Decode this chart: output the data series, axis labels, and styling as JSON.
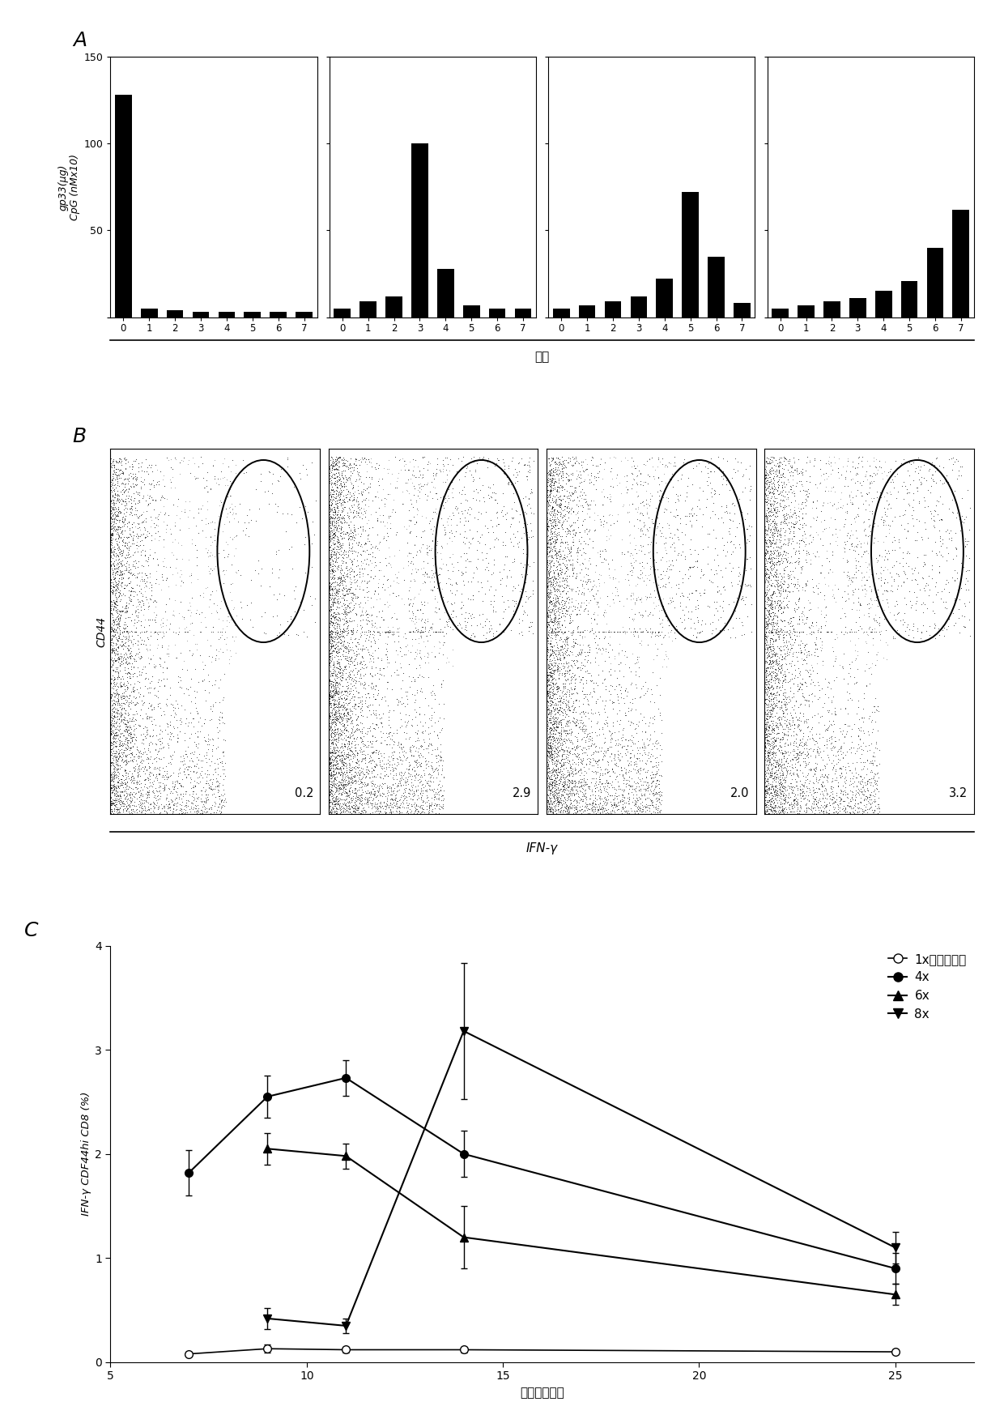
{
  "panel_A": {
    "title": "A",
    "ylabel1": "gp33(μg)",
    "ylabel2": "CpG (nMx10)",
    "xlabel_shared": "天数",
    "subpanels": [
      {
        "days": [
          0,
          1,
          2,
          3,
          4,
          5,
          6,
          7
        ],
        "values": [
          128,
          5,
          4,
          3,
          3,
          3,
          3,
          3
        ]
      },
      {
        "days": [
          0,
          1,
          2,
          3,
          4,
          5,
          6,
          7
        ],
        "values": [
          5,
          9,
          12,
          100,
          28,
          7,
          5,
          5
        ]
      },
      {
        "days": [
          0,
          1,
          2,
          3,
          4,
          5,
          6,
          7
        ],
        "values": [
          5,
          7,
          9,
          12,
          22,
          72,
          35,
          8
        ]
      },
      {
        "days": [
          0,
          1,
          2,
          3,
          4,
          5,
          6,
          7
        ],
        "values": [
          5,
          7,
          9,
          11,
          15,
          21,
          40,
          62
        ]
      }
    ],
    "ylim": [
      0,
      150
    ],
    "yticks": [
      0,
      50,
      100,
      150
    ],
    "yticklabels": [
      "",
      "50",
      "100",
      "150"
    ]
  },
  "panel_B": {
    "title": "B",
    "ylabel": "CD44",
    "xlabel": "IFN-γ",
    "scatter_labels": [
      "0.2",
      "2.9",
      "2.0",
      "3.2"
    ],
    "n_main": [
      2200,
      3000,
      2800,
      2500
    ],
    "n_upper": [
      200,
      700,
      600,
      650
    ]
  },
  "panel_C": {
    "title": "C",
    "ylabel": "IFN-γ CDF44hi CD8 (%)",
    "xlabel": "时间（天数）",
    "xlim": [
      5,
      27
    ],
    "ylim": [
      0,
      4
    ],
    "yticks": [
      0,
      1,
      2,
      3,
      4
    ],
    "xticks": [
      5,
      10,
      15,
      20,
      25
    ],
    "xticklabels": [
      "5",
      "10",
      "15",
      "20",
      "25"
    ],
    "series": {
      "1x": {
        "x": [
          7,
          9,
          11,
          14,
          25
        ],
        "y": [
          0.08,
          0.13,
          0.12,
          0.12,
          0.1
        ],
        "yerr": [
          0.02,
          0.04,
          0.03,
          0.03,
          0.02
        ],
        "marker": "o",
        "label": "1x（大丸剑）",
        "filled": false
      },
      "4x": {
        "x": [
          7,
          9,
          11,
          14,
          25
        ],
        "y": [
          1.82,
          2.55,
          2.73,
          2.0,
          0.9
        ],
        "yerr": [
          0.22,
          0.2,
          0.17,
          0.22,
          0.15
        ],
        "marker": "o",
        "label": "4x",
        "filled": true
      },
      "6x": {
        "x": [
          9,
          11,
          14,
          25
        ],
        "y": [
          2.05,
          1.98,
          1.2,
          0.65
        ],
        "yerr": [
          0.15,
          0.12,
          0.3,
          0.1
        ],
        "marker": "^",
        "label": "6x",
        "filled": true
      },
      "8x": {
        "x": [
          9,
          11,
          14,
          25
        ],
        "y": [
          0.42,
          0.35,
          3.18,
          1.1
        ],
        "yerr": [
          0.1,
          0.07,
          0.65,
          0.15
        ],
        "marker": "v",
        "label": "8x",
        "filled": true
      }
    },
    "series_order": [
      "1x",
      "4x",
      "6x",
      "8x"
    ]
  }
}
